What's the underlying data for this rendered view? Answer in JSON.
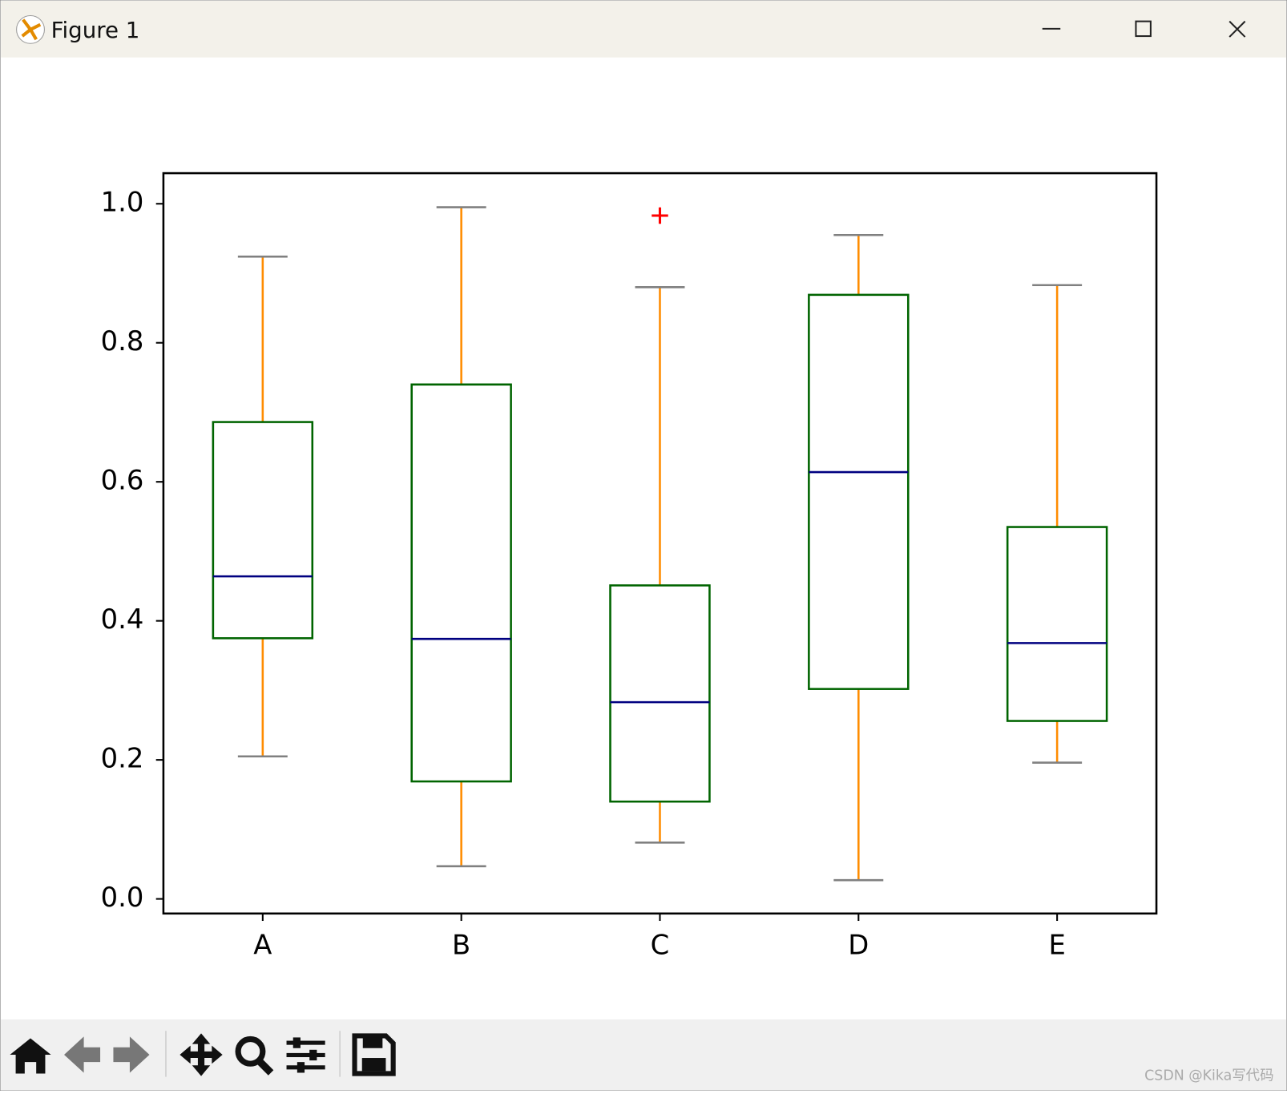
{
  "window_title": "Figure 1",
  "watermark": "CSDN @Kika写代码",
  "chart_data": {
    "type": "box",
    "categories": [
      "A",
      "B",
      "C",
      "D",
      "E"
    ],
    "boxes": [
      {
        "whislo": 0.205,
        "q1": 0.375,
        "med": 0.464,
        "q3": 0.686,
        "whishi": 0.924,
        "fliers": []
      },
      {
        "whislo": 0.047,
        "q1": 0.169,
        "med": 0.374,
        "q3": 0.74,
        "whishi": 0.995,
        "fliers": []
      },
      {
        "whislo": 0.081,
        "q1": 0.14,
        "med": 0.283,
        "q3": 0.451,
        "whishi": 0.88,
        "fliers": [
          0.983
        ]
      },
      {
        "whislo": 0.027,
        "q1": 0.302,
        "med": 0.614,
        "q3": 0.869,
        "whishi": 0.955,
        "fliers": []
      },
      {
        "whislo": 0.196,
        "q1": 0.256,
        "med": 0.368,
        "q3": 0.535,
        "whishi": 0.883,
        "fliers": []
      }
    ],
    "box_color": "#006400",
    "whisker_color": "#ff8c00",
    "cap_color": "#808080",
    "median_color": "#000080",
    "flier_color": "#ff0000",
    "ylim": [
      -0.021,
      1.044
    ],
    "yticks": [
      {
        "value": 0,
        "label": "0.0"
      },
      0.2,
      0.4,
      0.6,
      0.8,
      {
        "value": 1,
        "label": "1.0"
      }
    ],
    "grid": false
  }
}
